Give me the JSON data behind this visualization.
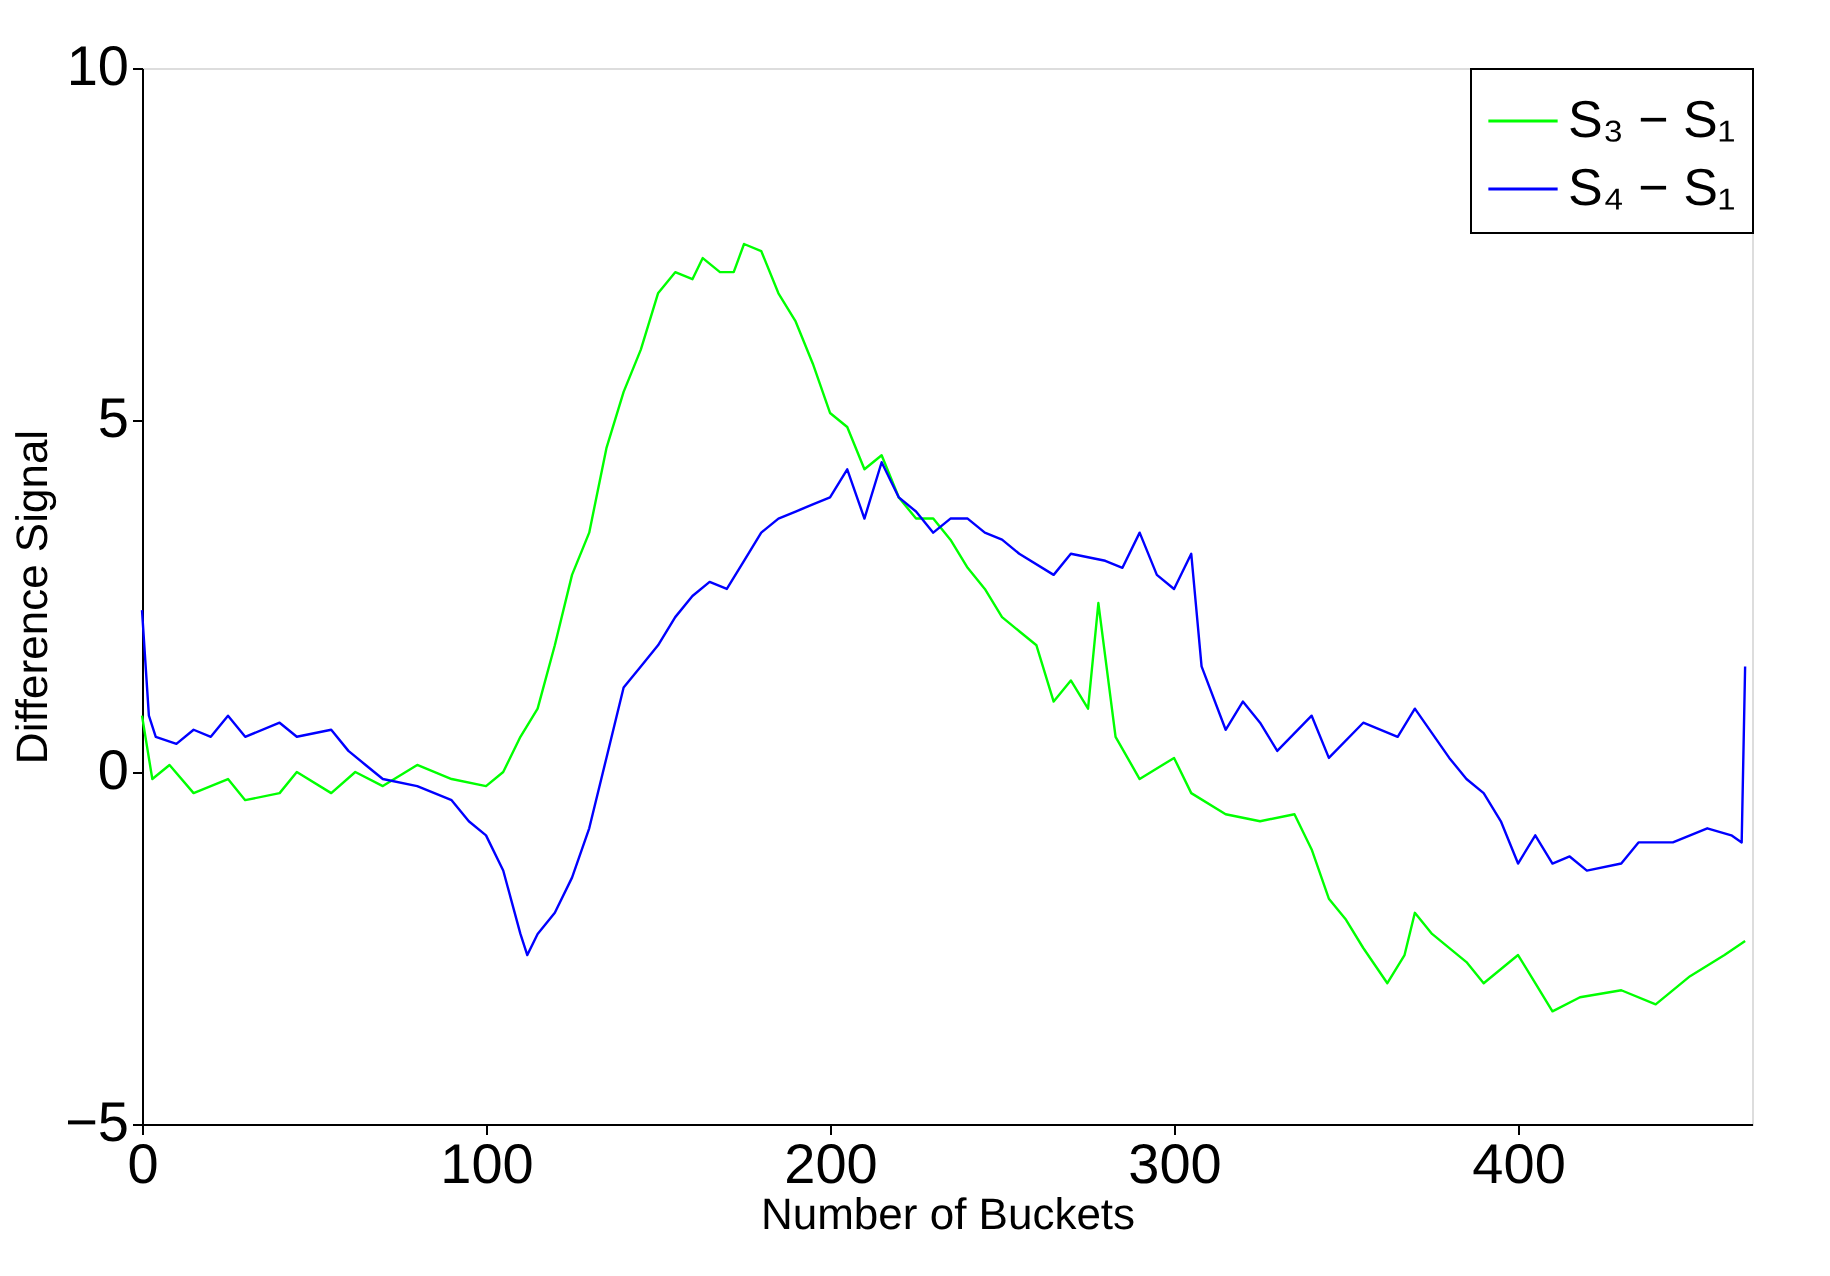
{
  "chart_data": {
    "type": "line",
    "xlabel": "Number of Buckets",
    "ylabel": "Difference Signal",
    "xlim": [
      0,
      468
    ],
    "ylim": [
      -5,
      10
    ],
    "xticks": [
      0,
      100,
      200,
      300,
      400
    ],
    "yticks": [
      -5,
      0,
      5,
      10
    ],
    "grid": false,
    "legend": "top right",
    "line_style": "solid",
    "series": [
      {
        "name": "S₃ − S₁",
        "color": "#00ff00",
        "x": [
          0,
          3,
          8,
          15,
          25,
          30,
          40,
          45,
          55,
          62,
          70,
          80,
          90,
          100,
          105,
          110,
          115,
          120,
          125,
          130,
          135,
          140,
          145,
          150,
          155,
          160,
          163,
          168,
          172,
          175,
          180,
          185,
          190,
          195,
          200,
          205,
          210,
          215,
          220,
          225,
          230,
          235,
          240,
          245,
          250,
          255,
          260,
          265,
          270,
          275,
          278,
          283,
          290,
          300,
          305,
          315,
          325,
          335,
          340,
          345,
          350,
          355,
          362,
          367,
          370,
          375,
          385,
          390,
          400,
          405,
          410,
          418,
          430,
          440,
          450,
          460,
          466
        ],
        "values": [
          0.8,
          -0.1,
          0.1,
          -0.3,
          -0.1,
          -0.4,
          -0.3,
          0.0,
          -0.3,
          0.0,
          -0.2,
          0.1,
          -0.1,
          -0.2,
          0.0,
          0.5,
          0.9,
          1.8,
          2.8,
          3.4,
          4.6,
          5.4,
          6.0,
          6.8,
          7.1,
          7.0,
          7.3,
          7.1,
          7.1,
          7.5,
          7.4,
          6.8,
          6.4,
          5.8,
          5.1,
          4.9,
          4.3,
          4.5,
          3.9,
          3.6,
          3.6,
          3.3,
          2.9,
          2.6,
          2.2,
          2.0,
          1.8,
          1.0,
          1.3,
          0.9,
          2.4,
          0.5,
          -0.1,
          0.2,
          -0.3,
          -0.6,
          -0.7,
          -0.6,
          -1.1,
          -1.8,
          -2.1,
          -2.5,
          -3.0,
          -2.6,
          -2.0,
          -2.3,
          -2.7,
          -3.0,
          -2.6,
          -3.0,
          -3.4,
          -3.2,
          -3.1,
          -3.3,
          -2.9,
          -2.6,
          -2.4
        ]
      },
      {
        "name": "S₄ − S₁",
        "color": "#0000ff",
        "x": [
          0,
          2,
          4,
          10,
          15,
          20,
          25,
          30,
          40,
          45,
          55,
          60,
          65,
          70,
          80,
          90,
          95,
          100,
          105,
          110,
          112,
          115,
          120,
          125,
          130,
          135,
          140,
          145,
          150,
          155,
          160,
          165,
          170,
          175,
          180,
          185,
          190,
          195,
          200,
          205,
          210,
          215,
          220,
          225,
          230,
          235,
          240,
          245,
          250,
          255,
          265,
          270,
          280,
          285,
          290,
          295,
          300,
          305,
          308,
          315,
          320,
          325,
          330,
          340,
          345,
          355,
          365,
          370,
          380,
          385,
          390,
          395,
          400,
          405,
          410,
          415,
          420,
          430,
          435,
          445,
          455,
          462,
          465,
          466
        ],
        "values": [
          2.3,
          0.8,
          0.5,
          0.4,
          0.6,
          0.5,
          0.8,
          0.5,
          0.7,
          0.5,
          0.6,
          0.3,
          0.1,
          -0.1,
          -0.2,
          -0.4,
          -0.7,
          -0.9,
          -1.4,
          -2.3,
          -2.6,
          -2.3,
          -2.0,
          -1.5,
          -0.8,
          0.2,
          1.2,
          1.5,
          1.8,
          2.2,
          2.5,
          2.7,
          2.6,
          3.0,
          3.4,
          3.6,
          3.7,
          3.8,
          3.9,
          4.3,
          3.6,
          4.4,
          3.9,
          3.7,
          3.4,
          3.6,
          3.6,
          3.4,
          3.3,
          3.1,
          2.8,
          3.1,
          3.0,
          2.9,
          3.4,
          2.8,
          2.6,
          3.1,
          1.5,
          0.6,
          1.0,
          0.7,
          0.3,
          0.8,
          0.2,
          0.7,
          0.5,
          0.9,
          0.2,
          -0.1,
          -0.3,
          -0.7,
          -1.3,
          -0.9,
          -1.3,
          -1.2,
          -1.4,
          -1.3,
          -1.0,
          -1.0,
          -0.8,
          -0.9,
          -1.0,
          1.5
        ]
      }
    ]
  }
}
